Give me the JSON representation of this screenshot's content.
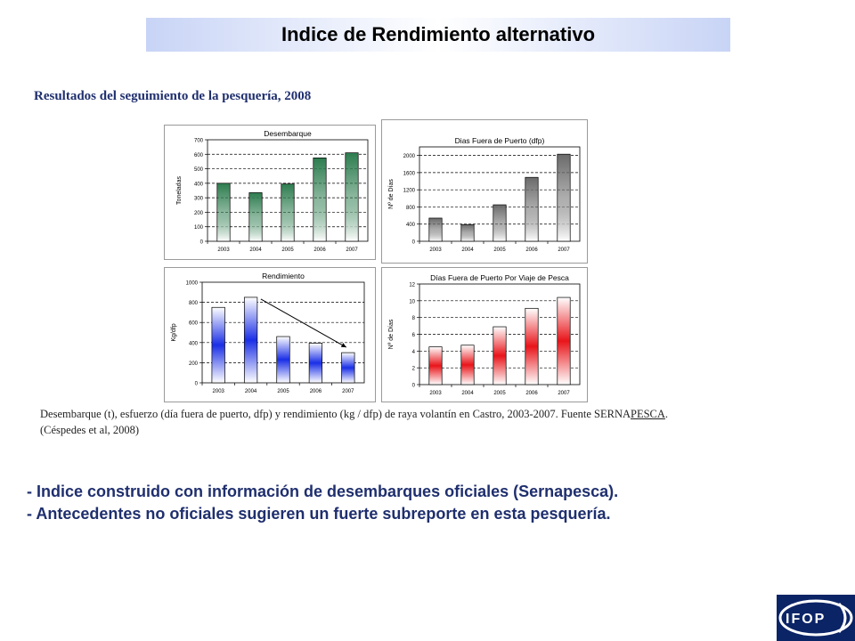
{
  "header": {
    "title": "Indice de Rendimiento alternativo"
  },
  "section": {
    "subtitle": "Resultados del seguimiento de la pesquería, 2008"
  },
  "chart_data": [
    {
      "id": "desembarque",
      "type": "bar",
      "title": "Desembarque",
      "xlabel": "",
      "ylabel": "Toneladas",
      "categories": [
        "2003",
        "2004",
        "2005",
        "2006",
        "2007"
      ],
      "values": [
        400,
        335,
        395,
        575,
        610
      ],
      "ylim": [
        0,
        700
      ],
      "yticks": [
        0,
        100,
        200,
        300,
        400,
        500,
        600,
        700
      ],
      "grid": true,
      "colors": [
        "#2e7d4f"
      ]
    },
    {
      "id": "dias-fuera",
      "type": "bar",
      "title": "Dias Fuera de Puerto (dfp)",
      "xlabel": "",
      "ylabel": "Nº de Días",
      "categories": [
        "2003",
        "2004",
        "2005",
        "2006",
        "2007"
      ],
      "values": [
        540,
        390,
        850,
        1490,
        2030
      ],
      "ylim": [
        0,
        2200
      ],
      "yticks": [
        0,
        400,
        800,
        1200,
        1600,
        2000
      ],
      "grid": true,
      "colors": [
        "#6b6b6b"
      ]
    },
    {
      "id": "rendimiento",
      "type": "bar",
      "title": "Rendimiento",
      "xlabel": "",
      "ylabel": "Kg/dfp",
      "categories": [
        "2003",
        "2004",
        "2005",
        "2006",
        "2007"
      ],
      "values": [
        750,
        850,
        460,
        395,
        300
      ],
      "ylim": [
        0,
        1000
      ],
      "yticks": [
        0,
        200,
        400,
        600,
        800,
        1000
      ],
      "grid": true,
      "colors": [
        "#1a2fe6"
      ],
      "annotation": "trend-arrow"
    },
    {
      "id": "dias-viaje",
      "type": "bar",
      "title": "Días Fuera de Puerto Por Viaje de Pesca",
      "xlabel": "",
      "ylabel": "Nº de Días",
      "categories": [
        "2003",
        "2004",
        "2005",
        "2006",
        "2007"
      ],
      "values": [
        4.5,
        4.7,
        6.9,
        9.1,
        10.4
      ],
      "ylim": [
        0,
        12
      ],
      "yticks": [
        0,
        2,
        4,
        6,
        8,
        10,
        12
      ],
      "grid": true,
      "colors": [
        "#e8151a"
      ]
    }
  ],
  "caption": {
    "line1_a": "Desembarque (t), esfuerzo (día fuera de puerto, dfp) y rendimiento (kg / dfp) de raya volantín en Castro, 2003-2007. Fuente SERNA",
    "line1_b": "PESCA",
    "line1_c": ".",
    "line2": "(Céspedes et al, 2008)"
  },
  "bullets": [
    "- Indice construido con información de desembarques oficiales (Sernapesca).",
    "- Antecedentes no oficiales sugieren un fuerte subreporte en esta pesquería."
  ],
  "logo": {
    "text": "IFOP"
  }
}
